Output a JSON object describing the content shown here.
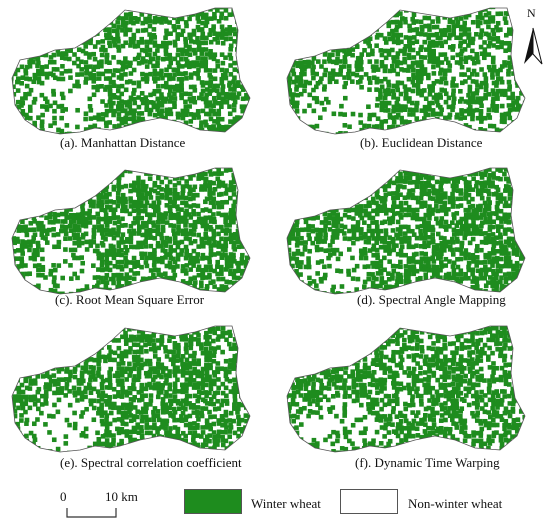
{
  "panels": [
    {
      "caption": "(a). Manhattan Distance",
      "density": 0.62
    },
    {
      "caption": "(b). Euclidean Distance",
      "density": 0.62
    },
    {
      "caption": "(c). Root Mean  Square Error",
      "density": 0.7
    },
    {
      "caption": "(d). Spectral Angle Mapping",
      "density": 0.71
    },
    {
      "caption": "(e). Spectral correlation coefficient",
      "density": 0.66
    },
    {
      "caption": "(f). Dynamic Time Warping",
      "density": 0.64
    }
  ],
  "north_label": "N",
  "scale_bar": {
    "start_label": "0",
    "end_label": "10 km"
  },
  "legend": [
    {
      "label": "Winter wheat",
      "color": "#1e8c1e"
    },
    {
      "label": "Non-winter wheat",
      "color": "#ffffff"
    }
  ]
}
